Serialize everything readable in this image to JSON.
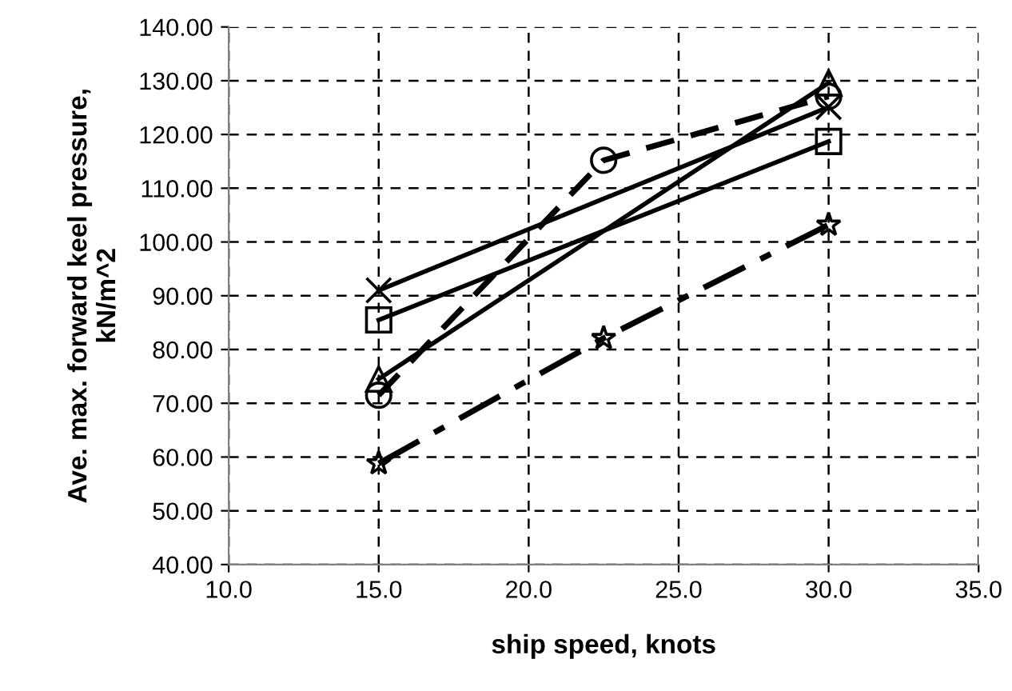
{
  "chart_data": {
    "type": "line",
    "xlabel": "ship speed, knots",
    "ylabel": "Ave. max. forward keel pressure,\nkN/m^2",
    "xlim": [
      10,
      35
    ],
    "xticks": [
      {
        "value": 10,
        "label": "10.0"
      },
      {
        "value": 15,
        "label": "15.0"
      },
      {
        "value": 20,
        "label": "20.0"
      },
      {
        "value": 25,
        "label": "25.0"
      },
      {
        "value": 30,
        "label": "30.0"
      },
      {
        "value": 35,
        "label": "35.0"
      }
    ],
    "ylim": [
      40,
      140
    ],
    "yticks": [
      {
        "value": 40,
        "label": "40.00"
      },
      {
        "value": 50,
        "label": "50.00"
      },
      {
        "value": 60,
        "label": "60.00"
      },
      {
        "value": 70,
        "label": "70.00"
      },
      {
        "value": 80,
        "label": "80.00"
      },
      {
        "value": 90,
        "label": "90.00"
      },
      {
        "value": 100,
        "label": "100.00"
      },
      {
        "value": 110,
        "label": "110.00"
      },
      {
        "value": 120,
        "label": "120.00"
      },
      {
        "value": 130,
        "label": "130.00"
      },
      {
        "value": 140,
        "label": "140.00"
      }
    ],
    "grid": true,
    "legend": false,
    "series": [
      {
        "color": "#000000",
        "x": [
          15,
          30
        ],
        "values": [
          91.0,
          125.1
        ],
        "marker": "cross",
        "line_style": "solid"
      },
      {
        "color": "#000000",
        "x": [
          15,
          30
        ],
        "values": [
          85.5,
          118.7
        ],
        "marker": "square",
        "line_style": "solid"
      },
      {
        "color": "#000000",
        "x": [
          15,
          30
        ],
        "values": [
          74.5,
          129.6
        ],
        "marker": "triangle",
        "line_style": "solid"
      },
      {
        "color": "#000000",
        "x": [
          15,
          22.5,
          30
        ],
        "values": [
          71.5,
          115.2,
          127.1
        ],
        "marker": "circle",
        "line_style": "dashed"
      },
      {
        "color": "#000000",
        "x": [
          15,
          22.5,
          30
        ],
        "values": [
          58.8,
          82.1,
          103.2
        ],
        "marker": "star",
        "line_style": "dashdot"
      }
    ]
  }
}
